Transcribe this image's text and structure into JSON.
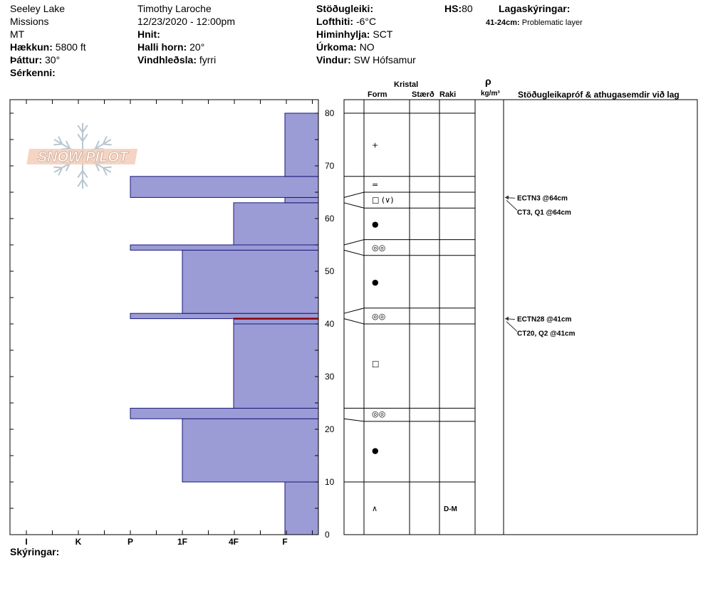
{
  "header": {
    "location": "Seeley Lake",
    "range": "Missions",
    "state": "MT",
    "elevation_label": "Hækkun:",
    "elevation_value": "5800 ft",
    "aspect_label": "Þáttur:",
    "aspect_value": "30°",
    "features_label": "Sérkenni:",
    "observer": "Timothy  Laroche",
    "datetime": "12/23/2020 - 12:00pm",
    "coords_label": "Hnit:",
    "slope_label": "Halli horn:",
    "slope_value": "20°",
    "wind_loading_label": "Vindhleðsla:",
    "wind_loading_value": "fyrri",
    "stability_label": "Stöðugleiki:",
    "air_temp_label": "Lofthiti:",
    "air_temp_value": "-6°C",
    "sky_label": "Himinhylja:",
    "sky_value": "SCT",
    "precip_label": "Úrkoma:",
    "precip_value": "NO",
    "wind_label": "Vindur:",
    "wind_value": "SW Hófsamur",
    "hs_label": "HS:",
    "hs_value": "80",
    "legend_title": "Lagaskýringar:",
    "legend_range": "41-24cm:",
    "legend_text": "Problematic layer"
  },
  "logo_text": "SNOW PILOT",
  "columns": {
    "kristal": "Kristal",
    "form": "Form",
    "size": "Stærð",
    "moisture": "Raki",
    "rho": "ρ",
    "density_unit": "kg/m³",
    "comments": "Stöðugleikapróf & athugasemdir við lag"
  },
  "footer": {
    "notes_label": "Skýringar:"
  },
  "chart_data": {
    "type": "bar",
    "orientation": "horizontal",
    "y_axis": {
      "label": "",
      "range": [
        0,
        80
      ],
      "ticks": [
        0,
        10,
        20,
        30,
        40,
        50,
        60,
        70,
        80
      ]
    },
    "hardness_scale": [
      "I",
      "K",
      "P",
      "1F",
      "4F",
      "F"
    ],
    "layers": [
      {
        "bottom": 0,
        "top": 10,
        "hardness": "F"
      },
      {
        "bottom": 10,
        "top": 22,
        "hardness": "1F"
      },
      {
        "bottom": 22,
        "top": 24,
        "hardness": "P"
      },
      {
        "bottom": 24,
        "top": 40,
        "hardness": "4F"
      },
      {
        "bottom": 40,
        "top": 41,
        "hardness": "4F"
      },
      {
        "bottom": 41,
        "top": 42,
        "hardness": "P"
      },
      {
        "bottom": 42,
        "top": 54,
        "hardness": "1F"
      },
      {
        "bottom": 54,
        "top": 55,
        "hardness": "P"
      },
      {
        "bottom": 55,
        "top": 63,
        "hardness": "4F"
      },
      {
        "bottom": 63,
        "top": 64,
        "hardness": "F"
      },
      {
        "bottom": 64,
        "top": 68,
        "hardness": "P"
      },
      {
        "bottom": 68,
        "top": 80,
        "hardness": "F"
      }
    ],
    "failure_layer_cm": 41,
    "grain_symbols": [
      {
        "cm": 74,
        "symbol": "+"
      },
      {
        "cm": 66.5,
        "symbol": "="
      },
      {
        "cm": 63.6,
        "symbol": "□ (∨)"
      },
      {
        "cm": 59,
        "symbol": "●"
      },
      {
        "cm": 54.5,
        "symbol": "◎◎"
      },
      {
        "cm": 48,
        "symbol": "●"
      },
      {
        "cm": 41.5,
        "symbol": "◎◎"
      },
      {
        "cm": 32.5,
        "symbol": "□"
      },
      {
        "cm": 23,
        "symbol": "◎◎"
      },
      {
        "cm": 16,
        "symbol": "●"
      },
      {
        "cm": 5,
        "symbol": "∧"
      }
    ],
    "moisture_labels": [
      {
        "cm": 5,
        "text": "D-M"
      }
    ],
    "tests": [
      {
        "cm": 64,
        "lines": [
          "ECTN3 @64cm",
          "CT3, Q1 @64cm"
        ]
      },
      {
        "cm": 41,
        "lines": [
          "ECTN28 @41cm",
          "CT20, Q2 @41cm"
        ]
      }
    ],
    "colors": {
      "layer_fill": "#9b9bd6",
      "layer_stroke": "#1a1a7a",
      "failure": "#8b0000"
    }
  }
}
